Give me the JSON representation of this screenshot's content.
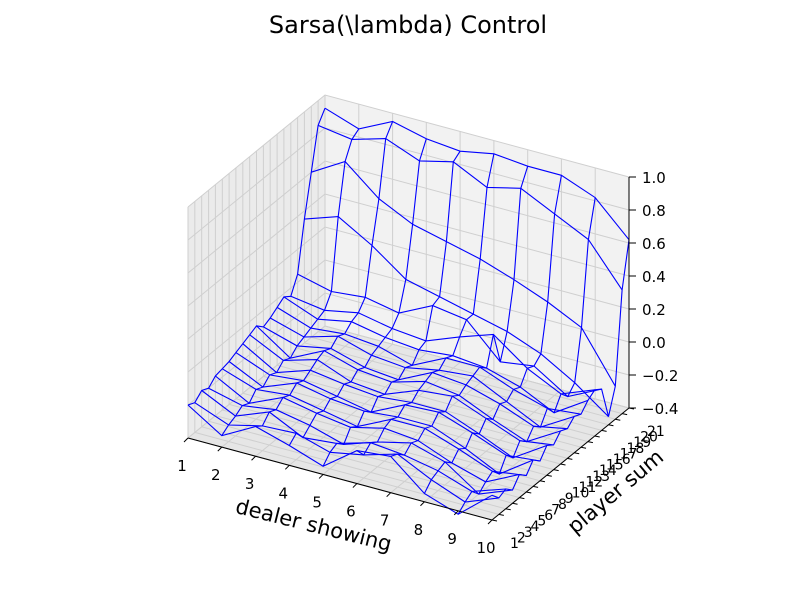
{
  "chart_data": {
    "type": "wireframe-3d",
    "title": "Sarsa(\\lambda) Control",
    "xlabel": "dealer showing",
    "ylabel": "player sum",
    "x_ticks": [
      "1",
      "2",
      "3",
      "4",
      "5",
      "6",
      "7",
      "8",
      "9",
      "10"
    ],
    "y_ticks": [
      "1",
      "2",
      "3",
      "4",
      "5",
      "6",
      "7",
      "8",
      "9",
      "10",
      "11",
      "12",
      "13",
      "14",
      "15",
      "16",
      "17",
      "18",
      "19",
      "20",
      "21"
    ],
    "z_ticks": [
      "−0.4",
      "−0.2",
      "0.0",
      "0.2",
      "0.4",
      "0.6",
      "0.8",
      "1.0"
    ],
    "zlim": [
      -0.4,
      1.0
    ],
    "grid": true,
    "wire_color": "#0000ff",
    "surface": [
      [
        -0.2,
        -0.33,
        -0.22,
        -0.28,
        -0.35,
        -0.2,
        -0.18,
        -0.35,
        -0.42,
        -0.25
      ],
      [
        -0.22,
        -0.3,
        -0.25,
        -0.24,
        -0.3,
        -0.26,
        -0.2,
        -0.3,
        -0.38,
        -0.3
      ],
      [
        -0.18,
        -0.28,
        -0.2,
        -0.3,
        -0.28,
        -0.22,
        -0.24,
        -0.28,
        -0.35,
        -0.28
      ],
      [
        -0.2,
        -0.25,
        -0.22,
        -0.26,
        -0.32,
        -0.25,
        -0.2,
        -0.26,
        -0.4,
        -0.32
      ],
      [
        -0.16,
        -0.27,
        -0.18,
        -0.22,
        -0.25,
        -0.2,
        -0.22,
        -0.3,
        -0.36,
        -0.26
      ],
      [
        -0.15,
        -0.22,
        -0.2,
        -0.24,
        -0.28,
        -0.18,
        -0.18,
        -0.25,
        -0.33,
        -0.3
      ],
      [
        -0.14,
        -0.24,
        -0.16,
        -0.2,
        -0.22,
        -0.2,
        -0.2,
        -0.28,
        -0.38,
        -0.24
      ],
      [
        -0.12,
        -0.2,
        -0.18,
        -0.22,
        -0.26,
        -0.16,
        -0.15,
        -0.22,
        -0.3,
        -0.28
      ],
      [
        -0.1,
        -0.22,
        -0.15,
        -0.18,
        -0.2,
        -0.18,
        -0.18,
        -0.26,
        -0.35,
        -0.22
      ],
      [
        -0.08,
        -0.18,
        -0.12,
        -0.2,
        -0.22,
        -0.14,
        -0.12,
        -0.2,
        -0.28,
        -0.25
      ],
      [
        -0.06,
        -0.2,
        -0.1,
        -0.16,
        -0.18,
        -0.12,
        -0.15,
        -0.24,
        -0.32,
        -0.2
      ],
      [
        -0.1,
        -0.16,
        -0.12,
        -0.18,
        -0.2,
        -0.1,
        -0.12,
        -0.18,
        -0.26,
        -0.22
      ],
      [
        -0.08,
        -0.14,
        -0.08,
        -0.14,
        -0.16,
        -0.12,
        -0.1,
        -0.2,
        -0.3,
        -0.18
      ],
      [
        -0.05,
        -0.12,
        -0.1,
        -0.12,
        -0.18,
        -0.08,
        -0.08,
        -0.16,
        -0.22,
        -0.2
      ],
      [
        -0.02,
        -0.1,
        -0.06,
        -0.1,
        -0.12,
        -0.1,
        -0.12,
        -0.18,
        -0.28,
        -0.15
      ],
      [
        -0.05,
        -0.08,
        -0.04,
        -0.08,
        -0.1,
        -0.02,
        0.05,
        -0.1,
        -0.2,
        -0.12
      ],
      [
        0.05,
        0.0,
        0.02,
        -0.02,
        0.08,
        0.05,
        -0.15,
        -0.12,
        -0.25,
        -0.15
      ],
      [
        0.35,
        0.42,
        0.3,
        0.15,
        0.1,
        0.05,
        0.0,
        -0.08,
        -0.2,
        -0.35
      ],
      [
        0.6,
        0.72,
        0.55,
        0.45,
        0.4,
        0.35,
        0.28,
        0.2,
        0.1,
        -0.2
      ],
      [
        0.85,
        0.82,
        0.88,
        0.8,
        0.85,
        0.75,
        0.8,
        0.7,
        0.6,
        0.35
      ],
      [
        0.92,
        0.85,
        0.95,
        0.9,
        0.88,
        0.92,
        0.9,
        0.9,
        0.82,
        0.62
      ]
    ]
  }
}
